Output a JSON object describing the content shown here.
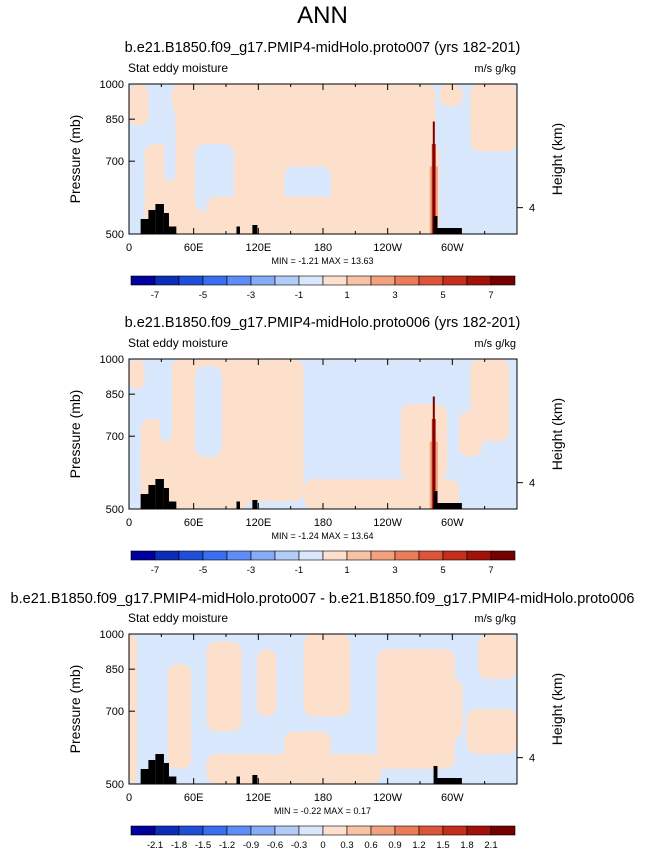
{
  "page_title": "ANN",
  "chart_data": [
    {
      "type": "heatmap",
      "title": "b.e21.B1850.f09_g17.PMIP4-midHolo.proto007 (yrs 182-201)",
      "subtitle_left": "Stat eddy moisture",
      "subtitle_right": "m/s g/kg",
      "xlabel": "",
      "ylabel": "Pressure (mb)",
      "ylabel_right": "Height (km)",
      "x_ticks": [
        "0",
        "60E",
        "120E",
        "180",
        "120W",
        "60W"
      ],
      "y_ticks": [
        "500",
        "700",
        "850",
        "1000"
      ],
      "right_ticks": [
        "4"
      ],
      "xlim": [
        0,
        360
      ],
      "ylim": [
        1000,
        500
      ],
      "min_max_text": "MIN = -1.21   MAX = 13.63",
      "min": -1.21,
      "max": 13.63,
      "colorbar_labels": [
        "-7",
        "-5",
        "-3",
        "-1",
        "1",
        "3",
        "5",
        "7"
      ],
      "colorbar_colors": [
        "#00009c",
        "#0b2db8",
        "#1f4fd8",
        "#3a6ef0",
        "#5d8ef7",
        "#86acf8",
        "#b3cbf7",
        "#d8e7fc",
        "#fde0cc",
        "#f8c2a5",
        "#f3a07f",
        "#eb7c5a",
        "#dc5439",
        "#c42e1c",
        "#a1120a",
        "#750000"
      ]
    },
    {
      "type": "heatmap",
      "title": "b.e21.B1850.f09_g17.PMIP4-midHolo.proto006 (yrs 182-201)",
      "subtitle_left": "Stat eddy moisture",
      "subtitle_right": "m/s g/kg",
      "xlabel": "",
      "ylabel": "Pressure (mb)",
      "ylabel_right": "Height (km)",
      "x_ticks": [
        "0",
        "60E",
        "120E",
        "180",
        "120W",
        "60W"
      ],
      "y_ticks": [
        "500",
        "700",
        "850",
        "1000"
      ],
      "right_ticks": [
        "4"
      ],
      "xlim": [
        0,
        360
      ],
      "ylim": [
        1000,
        500
      ],
      "min_max_text": "MIN = -1.24   MAX = 13.64",
      "min": -1.24,
      "max": 13.64,
      "colorbar_labels": [
        "-7",
        "-5",
        "-3",
        "-1",
        "1",
        "3",
        "5",
        "7"
      ],
      "colorbar_colors": [
        "#00009c",
        "#0b2db8",
        "#1f4fd8",
        "#3a6ef0",
        "#5d8ef7",
        "#86acf8",
        "#b3cbf7",
        "#d8e7fc",
        "#fde0cc",
        "#f8c2a5",
        "#f3a07f",
        "#eb7c5a",
        "#dc5439",
        "#c42e1c",
        "#a1120a",
        "#750000"
      ]
    },
    {
      "type": "heatmap",
      "title": "b.e21.B1850.f09_g17.PMIP4-midHolo.proto007 - b.e21.B1850.f09_g17.PMIP4-midHolo.proto006",
      "subtitle_left": "Stat eddy moisture",
      "subtitle_right": "m/s g/kg",
      "xlabel": "",
      "ylabel": "Pressure (mb)",
      "ylabel_right": "Height (km)",
      "x_ticks": [
        "0",
        "60E",
        "120E",
        "180",
        "120W",
        "60W"
      ],
      "y_ticks": [
        "500",
        "700",
        "850",
        "1000"
      ],
      "right_ticks": [
        "4"
      ],
      "xlim": [
        0,
        360
      ],
      "ylim": [
        1000,
        500
      ],
      "min_max_text": "MIN = -0.22   MAX =   0.17",
      "min": -0.22,
      "max": 0.17,
      "colorbar_labels": [
        "-2.1",
        "-1.8",
        "-1.5",
        "-1.2",
        "-0.9",
        "-0.6",
        "-0.3",
        "0",
        "0.3",
        "0.6",
        "0.9",
        "1.2",
        "1.5",
        "1.8",
        "2.1"
      ],
      "colorbar_colors": [
        "#00009c",
        "#0b2db8",
        "#1f4fd8",
        "#3a6ef0",
        "#5d8ef7",
        "#86acf8",
        "#b3cbf7",
        "#d8e7fc",
        "#fde0cc",
        "#f8c2a5",
        "#f3a07f",
        "#eb7c5a",
        "#dc5439",
        "#c42e1c",
        "#a1120a",
        "#750000"
      ]
    }
  ]
}
